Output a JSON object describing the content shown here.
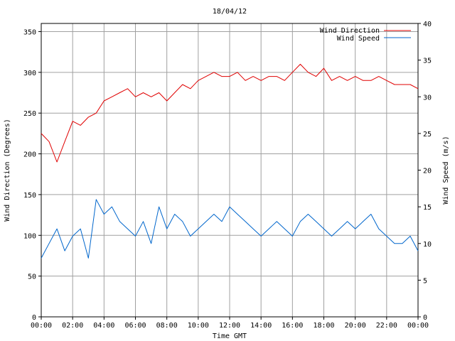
{
  "chart_data": {
    "type": "line",
    "title": "18/04/12",
    "xlabel": "Time GMT",
    "ylabel_left": "Wind Direction (Degrees)",
    "ylabel_right": "Wind Speed (m/s)",
    "x_ticks": [
      "00:00",
      "02:00",
      "04:00",
      "06:00",
      "08:00",
      "10:00",
      "12:00",
      "14:00",
      "16:00",
      "18:00",
      "20:00",
      "22:00",
      "00:00"
    ],
    "xlim_hours": [
      0,
      24
    ],
    "ylim_left": [
      0,
      360
    ],
    "y_ticks_left": [
      0,
      50,
      100,
      150,
      200,
      250,
      300,
      350
    ],
    "ylim_right": [
      0,
      40
    ],
    "y_ticks_right": [
      0,
      5,
      10,
      15,
      20,
      25,
      30,
      35,
      40
    ],
    "grid": true,
    "legend_position": "top-right",
    "legend": [
      "Wind Direction",
      "Wind Speed"
    ],
    "colors": {
      "direction": "#e00000",
      "speed": "#0066cc",
      "grid": "#a0a0a0"
    },
    "series": [
      {
        "name": "Wind Direction",
        "axis": "left",
        "color": "#e00000",
        "x_hours": [
          0,
          0.5,
          1,
          1.5,
          2,
          2.5,
          3,
          3.5,
          4,
          4.5,
          5,
          5.5,
          6,
          6.5,
          7,
          7.5,
          8,
          8.5,
          9,
          9.5,
          10,
          10.5,
          11,
          11.5,
          12,
          12.5,
          13,
          13.5,
          14,
          14.5,
          15,
          15.5,
          16,
          16.5,
          17,
          17.5,
          18,
          18.5,
          19,
          19.5,
          20,
          20.5,
          21,
          21.5,
          22,
          22.5,
          23,
          23.5,
          24
        ],
        "values": [
          225,
          215,
          190,
          215,
          240,
          235,
          245,
          250,
          265,
          270,
          275,
          280,
          270,
          275,
          270,
          275,
          265,
          275,
          285,
          280,
          290,
          295,
          300,
          295,
          295,
          300,
          290,
          295,
          290,
          295,
          295,
          290,
          300,
          310,
          300,
          295,
          305,
          290,
          295,
          290,
          295,
          290,
          290,
          295,
          290,
          285,
          285,
          285,
          280
        ]
      },
      {
        "name": "Wind Speed",
        "axis": "right",
        "color": "#0066cc",
        "x_hours": [
          0,
          0.5,
          1,
          1.5,
          2,
          2.5,
          3,
          3.5,
          4,
          4.5,
          5,
          5.5,
          6,
          6.5,
          7,
          7.5,
          8,
          8.5,
          9,
          9.5,
          10,
          10.5,
          11,
          11.5,
          12,
          12.5,
          13,
          13.5,
          14,
          14.5,
          15,
          15.5,
          16,
          16.5,
          17,
          17.5,
          18,
          18.5,
          19,
          19.5,
          20,
          20.5,
          21,
          21.5,
          22,
          22.5,
          23,
          23.5,
          24
        ],
        "values": [
          8,
          10,
          12,
          9,
          11,
          12,
          8,
          16,
          14,
          15,
          13,
          12,
          11,
          13,
          10,
          15,
          12,
          14,
          13,
          11,
          12,
          13,
          14,
          13,
          15,
          14,
          13,
          12,
          11,
          12,
          13,
          12,
          11,
          13,
          14,
          13,
          12,
          11,
          12,
          13,
          12,
          13,
          14,
          12,
          11,
          10,
          10,
          11,
          9
        ]
      }
    ]
  }
}
